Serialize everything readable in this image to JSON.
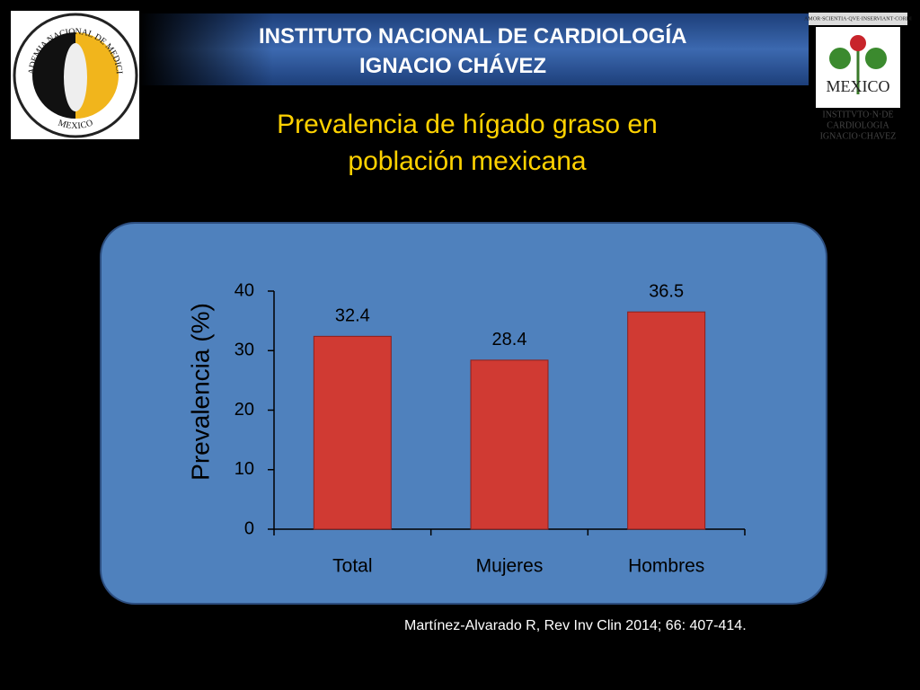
{
  "header": {
    "institution": "INSTITUTO NACIONAL DE CARDIOLOGÍA",
    "institution_line2": "IGNACIO CHÁVEZ"
  },
  "logos": {
    "left_ring": "ACADEMIA NACIONAL DE MEDICINA",
    "left_bottom": "MEXICO",
    "right_motto": "AMOR·SCIENTIA·QVE·INSERVIANT·CORDI",
    "right_center": "MEXICO",
    "right_lines": [
      "INSTITVTO·N·DE",
      "CARDIOLOGIA",
      "IGNACIO·CHAVEZ"
    ]
  },
  "chart_data": {
    "type": "bar",
    "title": "Prevalencia de hígado graso en población mexicana",
    "ylabel": "Prevalencia (%)",
    "categories": [
      "Total",
      "Mujeres",
      "Hombres"
    ],
    "values": [
      32.4,
      28.4,
      36.5
    ],
    "color": "#d03a33",
    "ylim": [
      0,
      40
    ],
    "yticks": [
      0,
      10,
      20,
      30,
      40
    ]
  },
  "citation": "Martínez-Alvarado R, Rev Inv Clin 2014; 66: 407-414."
}
